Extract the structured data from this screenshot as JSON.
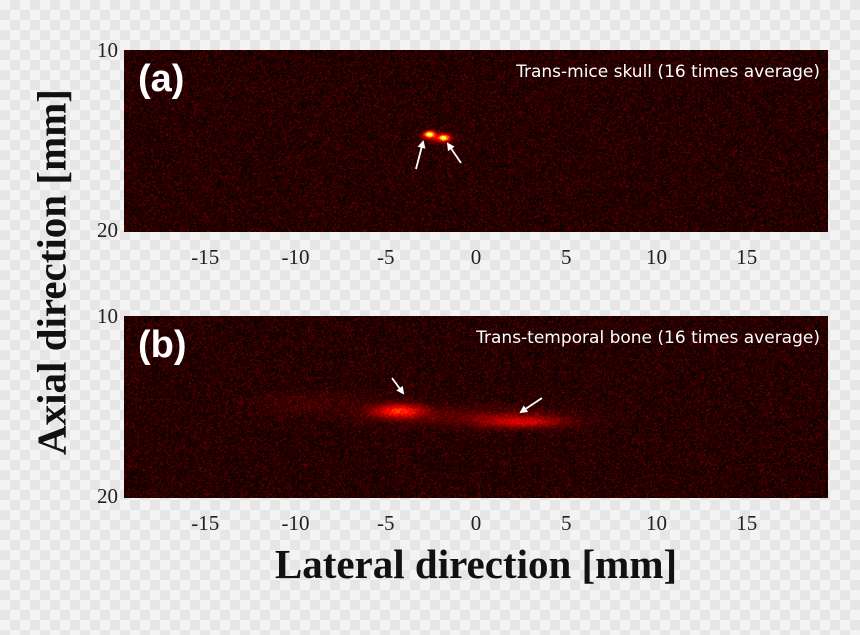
{
  "figure": {
    "ylabel": "Axial direction [mm]",
    "xlabel": "Lateral direction [mm]",
    "x_ticks": [
      "-15",
      "-10",
      "-5",
      "0",
      "5",
      "10",
      "15"
    ],
    "x_tick_values": [
      -15,
      -10,
      -5,
      0,
      5,
      10,
      15
    ],
    "x_range": [
      -19.5,
      19.5
    ],
    "y_range": [
      10,
      20
    ],
    "panels": [
      {
        "letter": "(a)",
        "caption": "Trans-mice skull (16 times average)",
        "y_ticks": [
          "10",
          "20"
        ],
        "colormap": "hot",
        "highlights": [
          {
            "x": -2.6,
            "y": 14.6
          },
          {
            "x": -1.8,
            "y": 14.8
          }
        ]
      },
      {
        "letter": "(b)",
        "caption": "Trans-temporal bone (16 times average)",
        "y_ticks": [
          "10",
          "20"
        ],
        "colormap": "hot",
        "highlights": [
          {
            "x": -4.3,
            "y": 15.2
          },
          {
            "x": 2.5,
            "y": 15.8
          }
        ]
      }
    ]
  }
}
